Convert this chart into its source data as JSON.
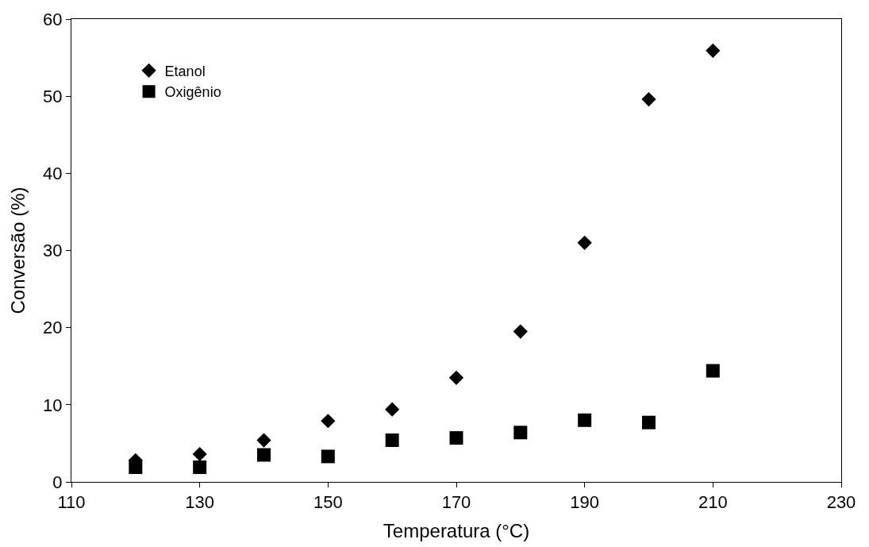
{
  "chart_data": {
    "type": "scatter",
    "xlabel": "Temperatura (°C)",
    "ylabel": "Conversão (%)",
    "x": [
      120,
      130,
      140,
      150,
      160,
      170,
      180,
      190,
      200,
      210
    ],
    "series": [
      {
        "name": "Etanol",
        "color": "#000000",
        "marker": "diamond",
        "values": [
          2.8,
          3.6,
          5.4,
          7.9,
          9.4,
          13.5,
          19.5,
          31,
          49.6,
          55.9
        ]
      },
      {
        "name": "Oxigênio",
        "color": "#000000",
        "marker": "square",
        "values": [
          1.9,
          1.9,
          3.5,
          3.3,
          5.4,
          5.7,
          6.4,
          8.0,
          7.7,
          14.4
        ]
      }
    ],
    "xlim": [
      110,
      230
    ],
    "xticks": [
      110,
      130,
      150,
      170,
      190,
      210,
      230
    ],
    "ylim": [
      0,
      60
    ],
    "yticks": [
      0,
      10,
      20,
      30,
      40,
      50,
      60
    ],
    "legend": "top left"
  }
}
